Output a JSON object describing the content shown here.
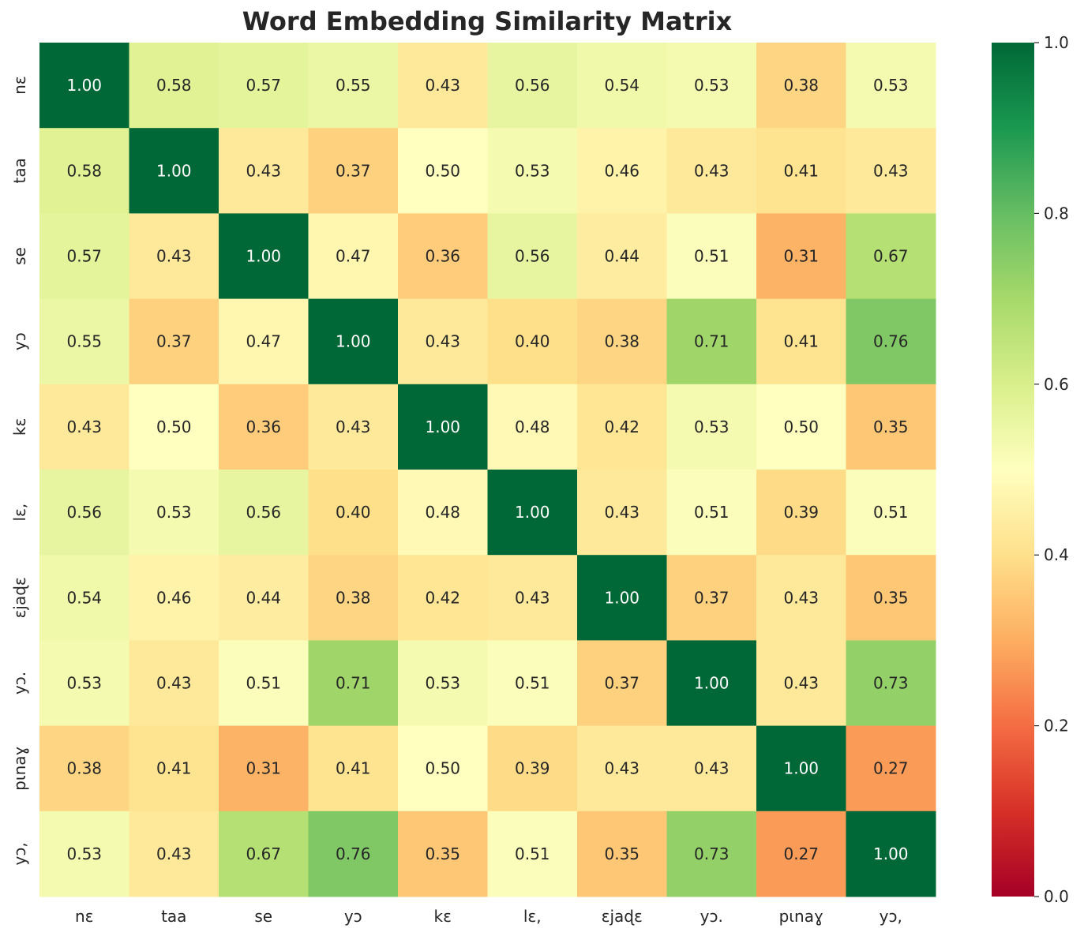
{
  "chart_data": {
    "type": "heatmap",
    "title": "Word Embedding Similarity Matrix",
    "xlabel": "",
    "ylabel": "",
    "row_labels": [
      "nɛ",
      "taa",
      "se",
      "yɔ",
      "kɛ",
      "lɛ,",
      "ɛjaɖɛ",
      "yɔ.",
      "pɩnaɣ",
      "yɔ,"
    ],
    "col_labels": [
      "nɛ",
      "taa",
      "se",
      "yɔ",
      "kɛ",
      "lɛ,",
      "ɛjaɖɛ",
      "yɔ.",
      "pɩnaɣ",
      "yɔ,"
    ],
    "values": [
      [
        1.0,
        0.58,
        0.57,
        0.55,
        0.43,
        0.56,
        0.54,
        0.53,
        0.38,
        0.53
      ],
      [
        0.58,
        1.0,
        0.43,
        0.37,
        0.5,
        0.53,
        0.46,
        0.43,
        0.41,
        0.43
      ],
      [
        0.57,
        0.43,
        1.0,
        0.47,
        0.36,
        0.56,
        0.44,
        0.51,
        0.31,
        0.67
      ],
      [
        0.55,
        0.37,
        0.47,
        1.0,
        0.43,
        0.4,
        0.38,
        0.71,
        0.41,
        0.76
      ],
      [
        0.43,
        0.5,
        0.36,
        0.43,
        1.0,
        0.48,
        0.42,
        0.53,
        0.5,
        0.35
      ],
      [
        0.56,
        0.53,
        0.56,
        0.4,
        0.48,
        1.0,
        0.43,
        0.51,
        0.39,
        0.51
      ],
      [
        0.54,
        0.46,
        0.44,
        0.38,
        0.42,
        0.43,
        1.0,
        0.37,
        0.43,
        0.35
      ],
      [
        0.53,
        0.43,
        0.51,
        0.71,
        0.53,
        0.51,
        0.37,
        1.0,
        0.43,
        0.73
      ],
      [
        0.38,
        0.41,
        0.31,
        0.41,
        0.5,
        0.39,
        0.43,
        0.43,
        1.0,
        0.27
      ],
      [
        0.53,
        0.43,
        0.67,
        0.76,
        0.35,
        0.51,
        0.35,
        0.73,
        0.27,
        1.0
      ]
    ],
    "colormap": "RdYlGn",
    "vmin": 0.0,
    "vmax": 1.0,
    "colorbar_ticks": [
      "0.0",
      "0.2",
      "0.4",
      "0.6",
      "0.8",
      "1.0"
    ],
    "annotation_format": "2 decimals",
    "grid": false
  }
}
